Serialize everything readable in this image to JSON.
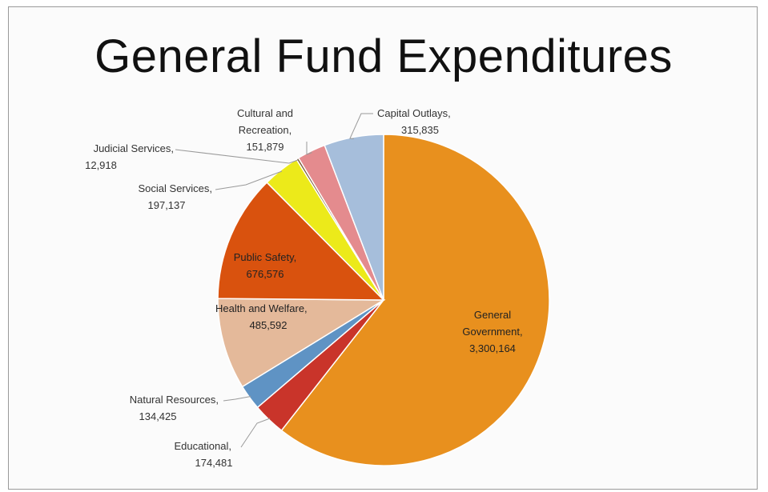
{
  "chart_data": {
    "type": "pie",
    "title": "General Fund Expenditures",
    "slices": [
      {
        "label": "General Government,",
        "value": 3300164,
        "display": "3,300,164",
        "color": "#e8901e"
      },
      {
        "label": "Educational,",
        "value": 174481,
        "display": "174,481",
        "color": "#c9342a"
      },
      {
        "label": "Natural Resources,",
        "value": 134425,
        "display": "134,425",
        "color": "#5f93c4"
      },
      {
        "label": "Health and Welfare,",
        "value": 485592,
        "display": "485,592",
        "color": "#e4b99a"
      },
      {
        "label": "Public Safety,",
        "value": 676576,
        "display": "676,576",
        "color": "#d9520e"
      },
      {
        "label": "Social Services,",
        "value": 197137,
        "display": "197,137",
        "color": "#ecea1a"
      },
      {
        "label": "Judicial Services,",
        "value": 12918,
        "display": "12,918",
        "color": "#7a5a3a"
      },
      {
        "label": "Cultural and Recreation,",
        "value": 151879,
        "display": "151,879",
        "color": "#e48b8e"
      },
      {
        "label": "Capital Outlays,",
        "value": 315835,
        "display": "315,835",
        "color": "#a6bedb"
      }
    ]
  }
}
